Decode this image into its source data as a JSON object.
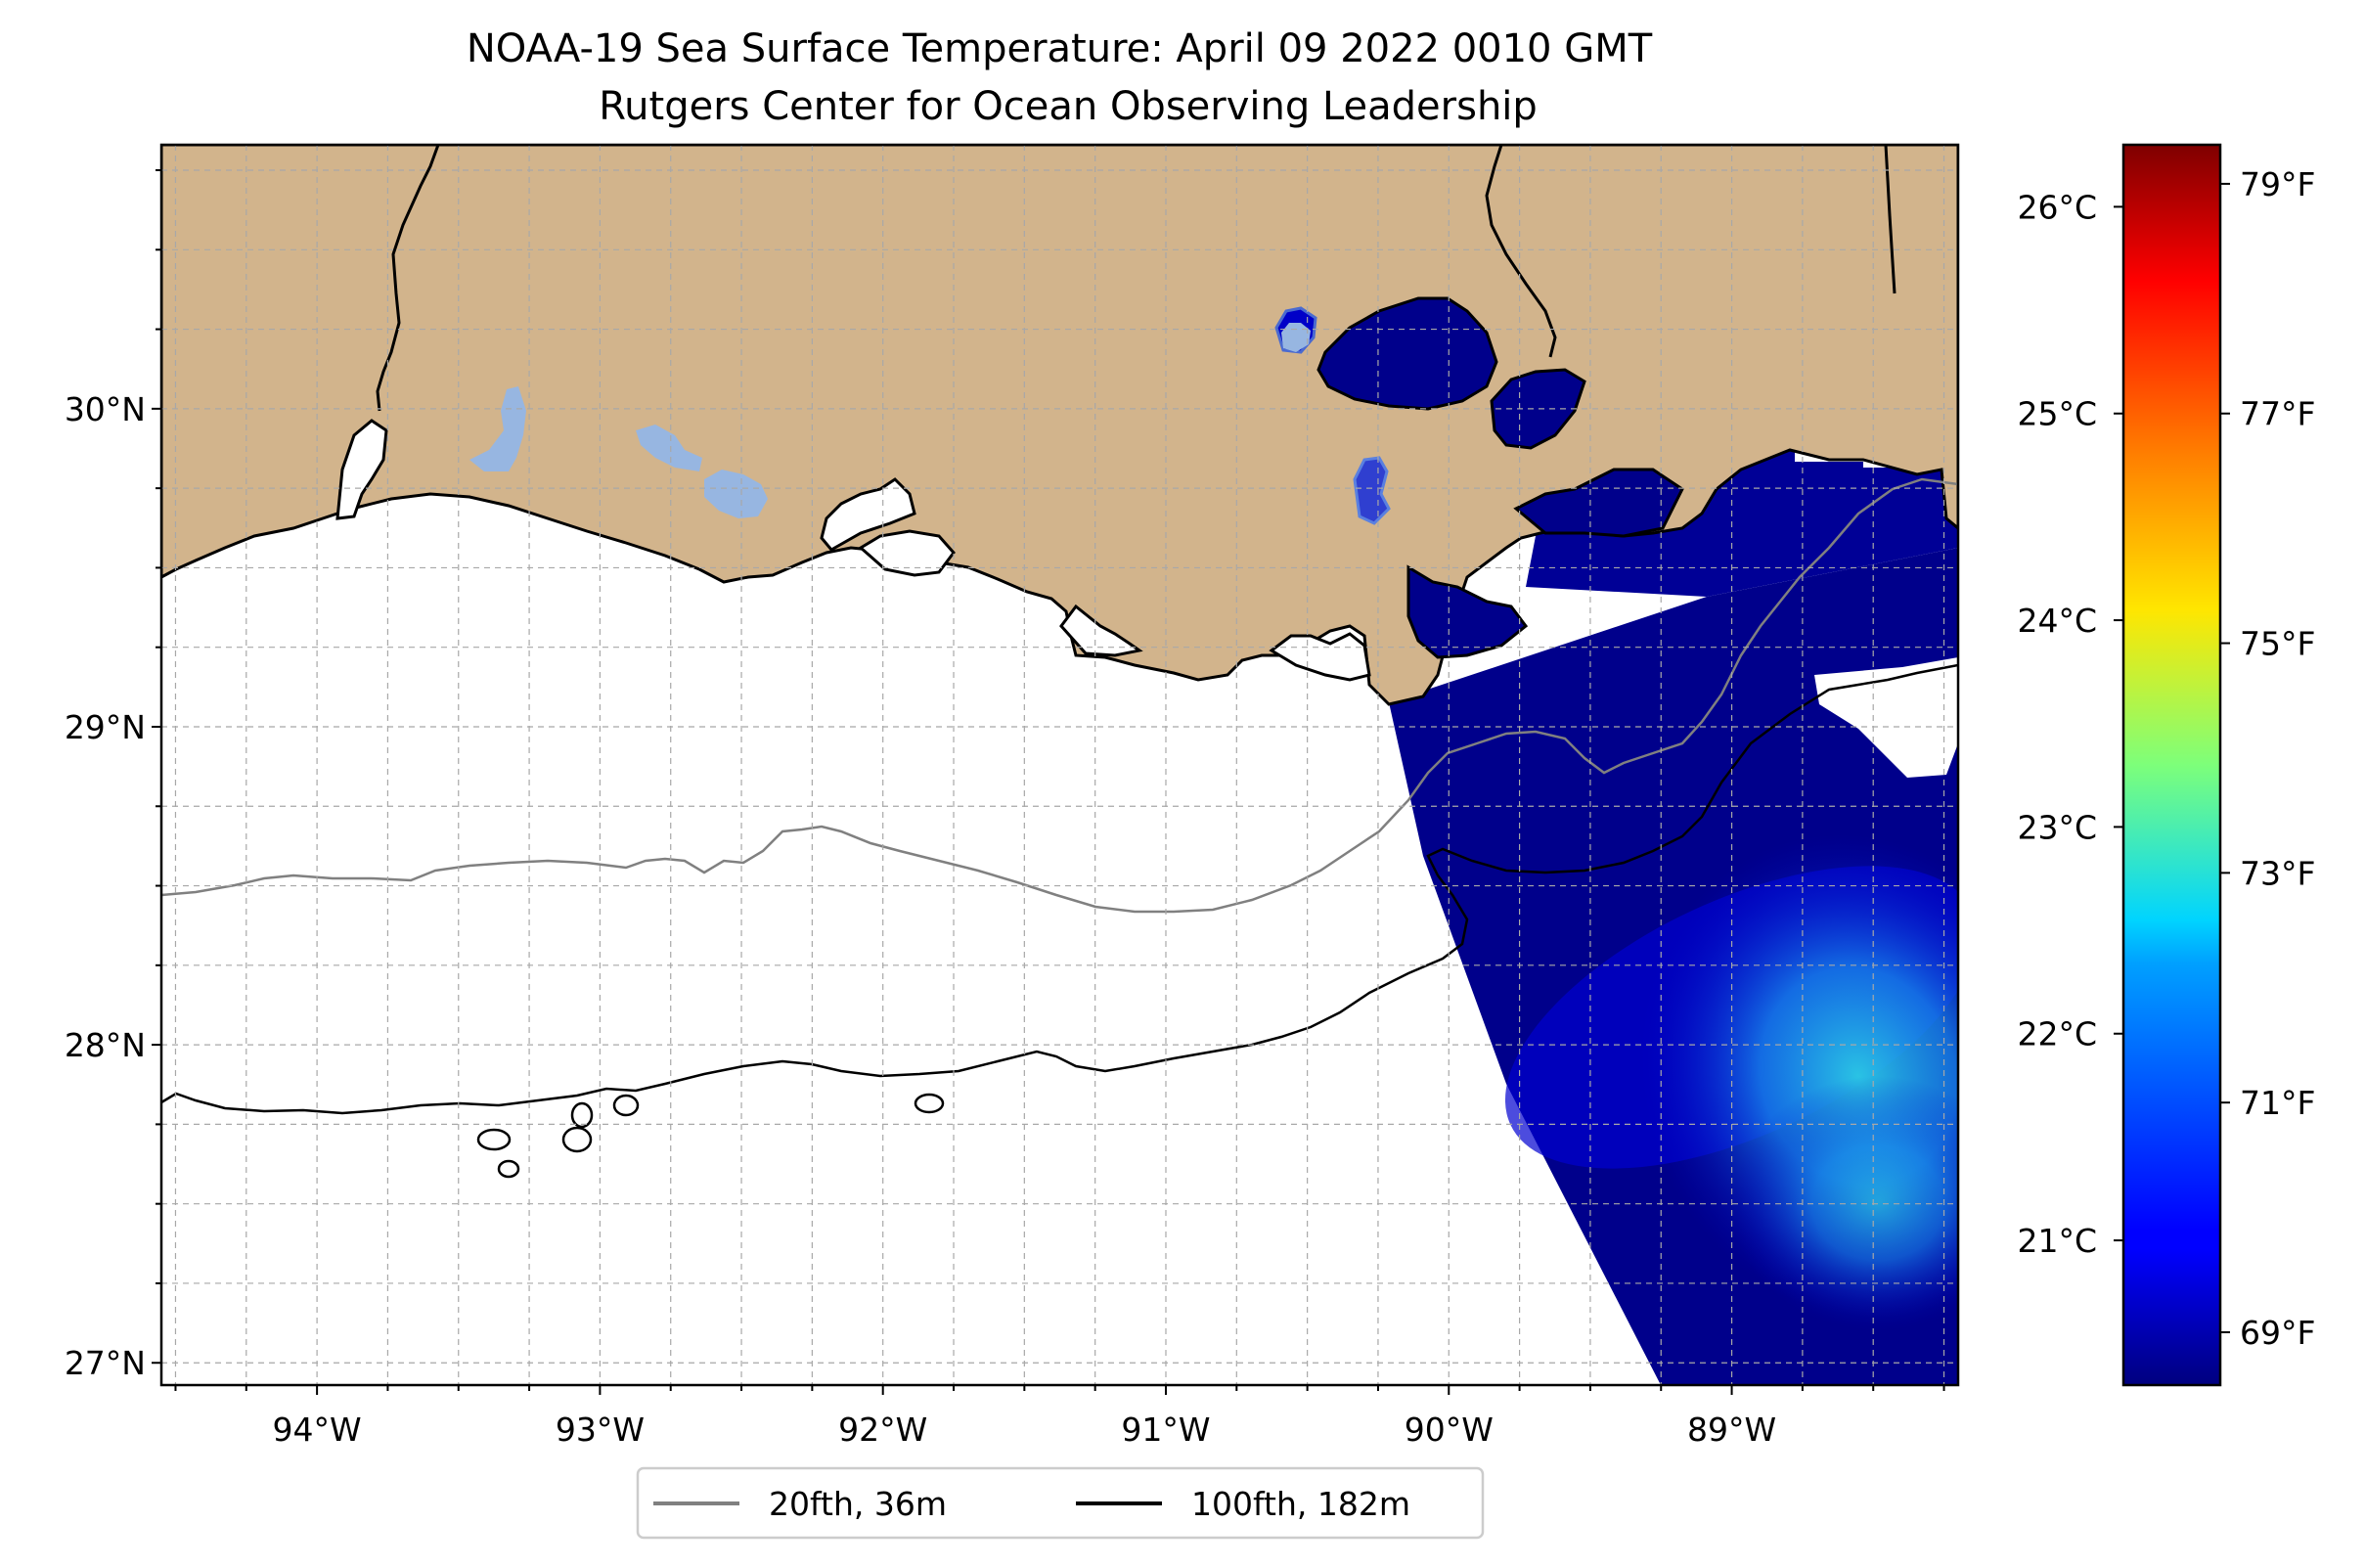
{
  "title": {
    "line1": "NOAA-19 Sea Surface Temperature: April 09 2022 0010 GMT",
    "line2": "Rutgers Center for Ocean Observing Leadership"
  },
  "map": {
    "lon_range": [
      -94.55,
      -88.2
    ],
    "lat_range": [
      26.93,
      30.83
    ],
    "lon_ticks": [
      {
        "value": -94,
        "label": "94°W"
      },
      {
        "value": -93,
        "label": "93°W"
      },
      {
        "value": -92,
        "label": "92°W"
      },
      {
        "value": -91,
        "label": "91°W"
      },
      {
        "value": -90,
        "label": "90°W"
      },
      {
        "value": -89,
        "label": "89°W"
      }
    ],
    "lat_ticks": [
      {
        "value": 30,
        "label": "30°N"
      },
      {
        "value": 29,
        "label": "29°N"
      },
      {
        "value": 28,
        "label": "28°N"
      },
      {
        "value": 27,
        "label": "27°N"
      }
    ],
    "minor_grid_step_deg": 0.25,
    "grid": true,
    "colors": {
      "land": "#d2b48c",
      "ocean_no_data": "#ffffff",
      "lakes": "#97b6e1",
      "contour_20fth": "#808080",
      "contour_100fth": "#000000"
    }
  },
  "legend": {
    "placement": "bottom-center",
    "items": [
      {
        "label": "20fth, 36m",
        "color": "#808080"
      },
      {
        "label": "100fth, 182m",
        "color": "#000000"
      }
    ]
  },
  "colorbar": {
    "colormap": "jet",
    "range_c": [
      20.3,
      26.3
    ],
    "celsius_ticks": [
      {
        "value": 21,
        "label": "21°C"
      },
      {
        "value": 22,
        "label": "22°C"
      },
      {
        "value": 23,
        "label": "23°C"
      },
      {
        "value": 24,
        "label": "24°C"
      },
      {
        "value": 25,
        "label": "25°C"
      },
      {
        "value": 26,
        "label": "26°C"
      }
    ],
    "fahrenheit_ticks": [
      {
        "value": 69,
        "label": "69°F"
      },
      {
        "value": 71,
        "label": "71°F"
      },
      {
        "value": 73,
        "label": "73°F"
      },
      {
        "value": 75,
        "label": "75°F"
      },
      {
        "value": 77,
        "label": "77°F"
      },
      {
        "value": 79,
        "label": "79°F"
      }
    ]
  }
}
